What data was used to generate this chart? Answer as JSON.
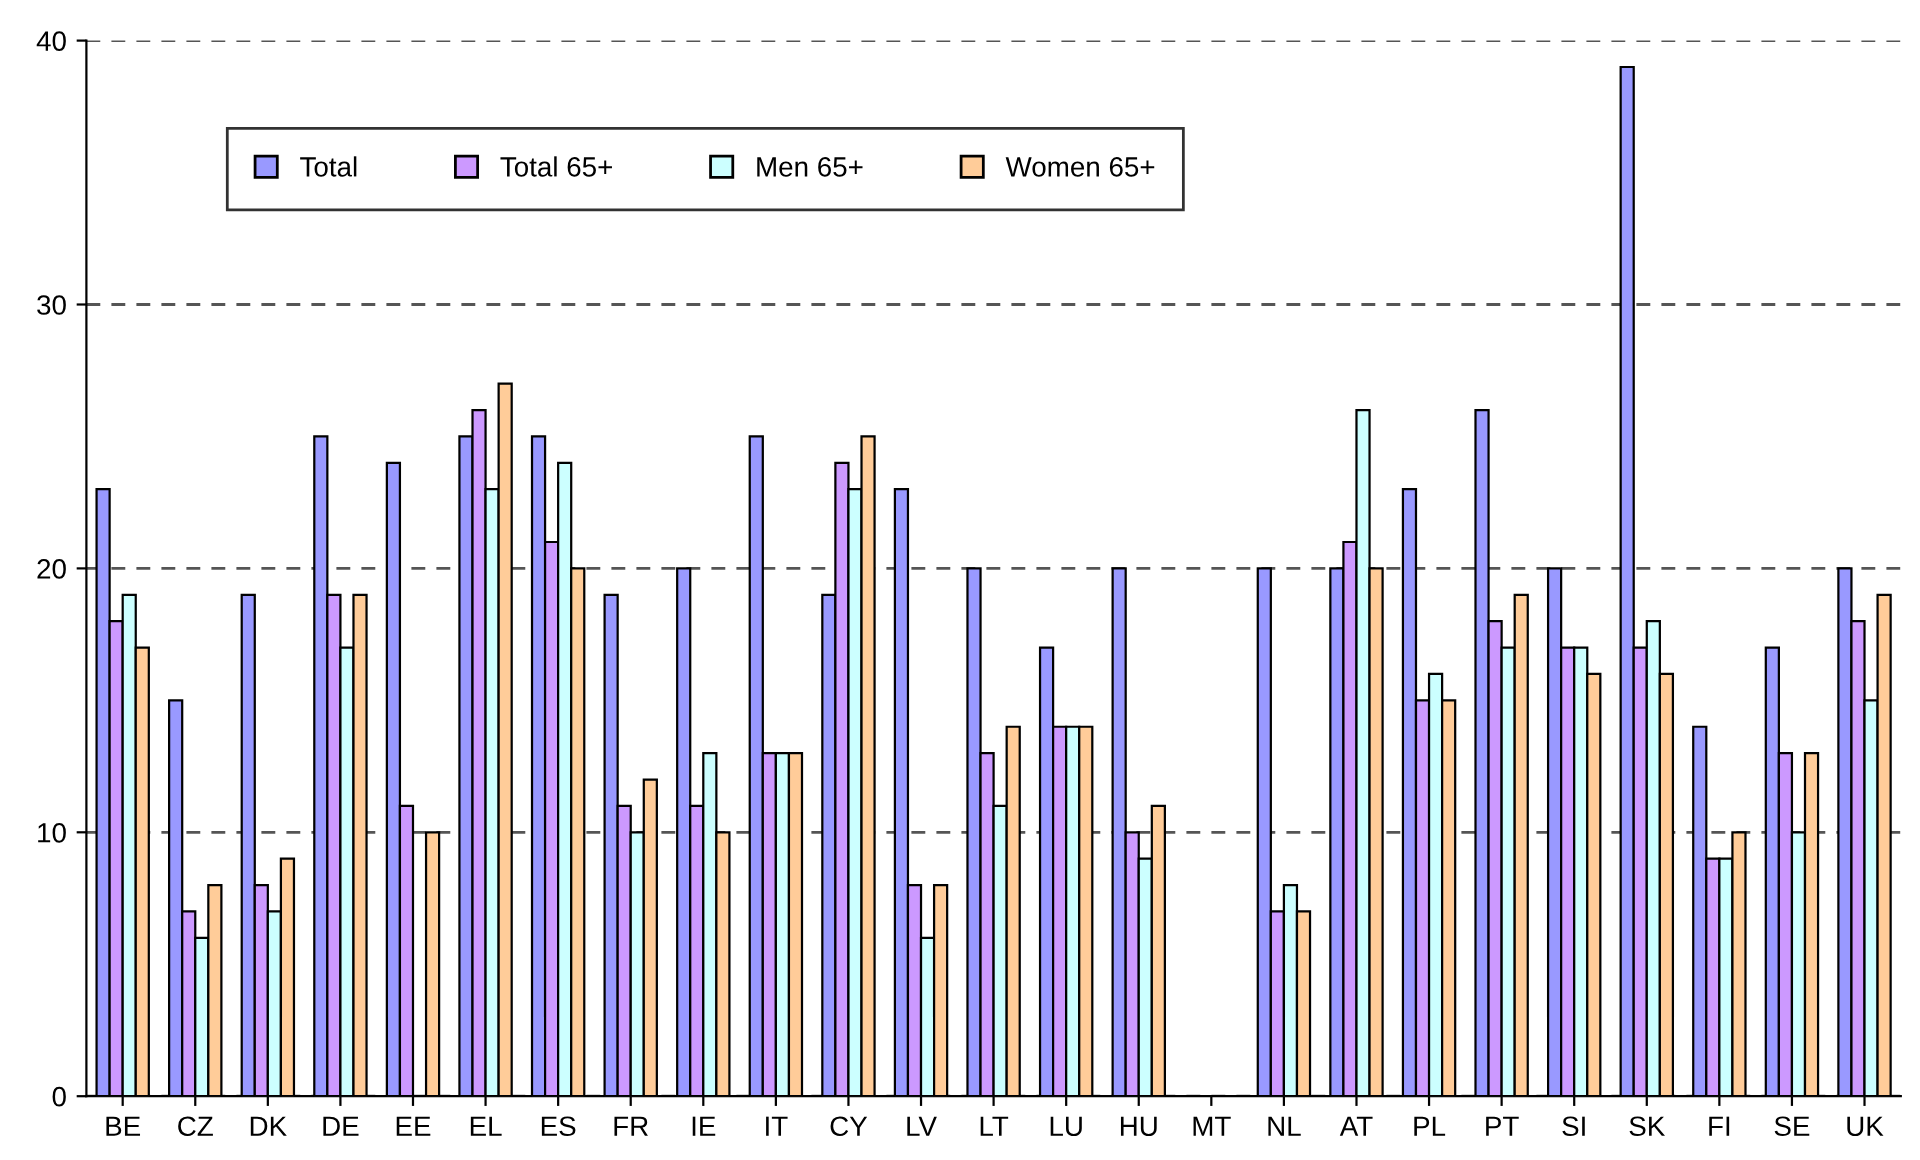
{
  "chart_data": {
    "type": "bar",
    "categories": [
      "BE",
      "CZ",
      "DK",
      "DE",
      "EE",
      "EL",
      "ES",
      "FR",
      "IE",
      "IT",
      "CY",
      "LV",
      "LT",
      "LU",
      "HU",
      "MT",
      "NL",
      "AT",
      "PL",
      "PT",
      "SI",
      "SK",
      "FI",
      "SE",
      "UK"
    ],
    "series": [
      {
        "name": "Total",
        "color": "#9999ff",
        "values": [
          23,
          15,
          19,
          25,
          24,
          25,
          25,
          19,
          20,
          25,
          19,
          23,
          20,
          17,
          20,
          null,
          20,
          20,
          23,
          26,
          20,
          39,
          14,
          17,
          20
        ]
      },
      {
        "name": "Total 65+",
        "color": "#cc99ff",
        "values": [
          18,
          7,
          8,
          19,
          11,
          26,
          21,
          11,
          11,
          13,
          24,
          8,
          13,
          14,
          10,
          null,
          7,
          21,
          15,
          18,
          17,
          17,
          9,
          13,
          18
        ]
      },
      {
        "name": "Men 65+",
        "color": "#ccffff",
        "values": [
          19,
          6,
          7,
          17,
          null,
          23,
          24,
          10,
          13,
          13,
          23,
          6,
          11,
          14,
          9,
          null,
          8,
          26,
          16,
          17,
          17,
          18,
          9,
          10,
          15
        ]
      },
      {
        "name": "Women 65+",
        "color": "#ffcc99",
        "values": [
          17,
          8,
          9,
          19,
          10,
          27,
          20,
          12,
          10,
          13,
          25,
          8,
          14,
          14,
          11,
          null,
          7,
          20,
          15,
          19,
          16,
          16,
          10,
          13,
          19
        ]
      }
    ],
    "ylim": [
      0,
      40
    ],
    "yticks": [
      0,
      10,
      20,
      30,
      40
    ],
    "grid": "y",
    "line_style": "dashed",
    "legend": "top left"
  }
}
